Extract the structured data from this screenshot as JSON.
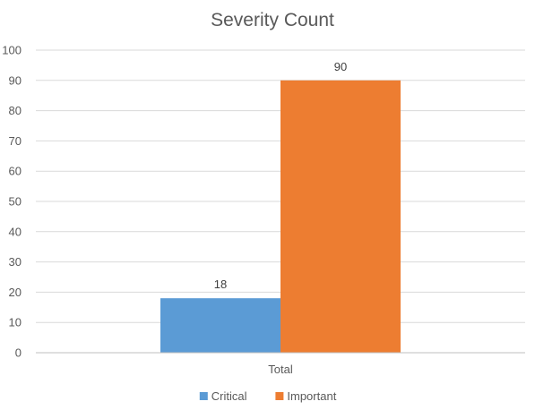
{
  "chart_data": {
    "type": "bar",
    "title": "Severity Count",
    "categories": [
      "Total"
    ],
    "series": [
      {
        "name": "Critical",
        "values": [
          18
        ],
        "color": "#5B9BD5"
      },
      {
        "name": "Important",
        "values": [
          90
        ],
        "color": "#ED7D31"
      }
    ],
    "ylim": [
      0,
      100
    ],
    "yticks": [
      0,
      10,
      20,
      30,
      40,
      50,
      60,
      70,
      80,
      90,
      100
    ],
    "grid": true,
    "legend": "bottom-center",
    "data_labels": true
  }
}
